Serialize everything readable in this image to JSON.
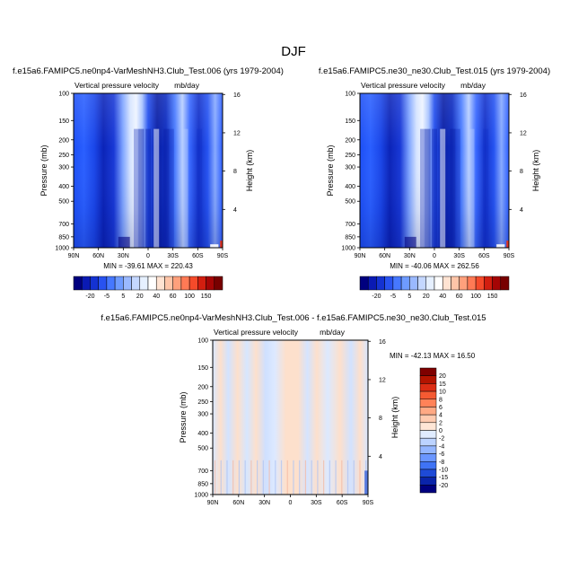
{
  "page": {
    "title": "DJF"
  },
  "colors": {
    "deep_blue": "#00007f",
    "mid_blue": "#1f50ff",
    "light_blue": "#c8dcff",
    "peach": "#fde0cc",
    "red": "#b40000",
    "dark_red": "#7f0000"
  },
  "chart_data": [
    {
      "type": "heatmap",
      "title": "f.e15a6.FAMIPC5.ne0np4-VarMeshNH3.Club_Test.006 (yrs 1979-2004)",
      "subtitle_left": "Vertical pressure velocity",
      "subtitle_right": "mb/day",
      "ylabel": "Pressure (mb)",
      "ylabel_right": "Height (km)",
      "x_ticks": [
        "90N",
        "60N",
        "30N",
        "0",
        "30S",
        "60S",
        "90S"
      ],
      "x_values": [
        90,
        60,
        30,
        0,
        -30,
        -60,
        -90
      ],
      "y_ticks": [
        "100",
        "150",
        "200",
        "250",
        "300",
        "400",
        "500",
        "700",
        "850",
        "1000"
      ],
      "y_values": [
        100,
        150,
        200,
        250,
        300,
        400,
        500,
        700,
        850,
        1000
      ],
      "y_right_ticks": [
        "4",
        "8",
        "12",
        "16"
      ],
      "y_right_values": [
        4,
        8,
        12,
        16
      ],
      "ylim": [
        1000,
        100
      ],
      "y_scale": "log",
      "stats_text": "MIN = -39.61   MAX = 220.43",
      "min": -39.61,
      "max": 220.43,
      "colorbar": {
        "orientation": "horizontal",
        "labels": [
          "-20",
          "-5",
          "5",
          "20",
          "40",
          "60",
          "100",
          "150"
        ],
        "colors": [
          "#00007f",
          "#0a1ab4",
          "#1432d2",
          "#2852f0",
          "#4678ff",
          "#6e9bff",
          "#9ab9ff",
          "#c4d7ff",
          "#e6f0ff",
          "#ffffff",
          "#ffe3d2",
          "#ffc5a8",
          "#ffa07c",
          "#ff7a55",
          "#f54a2a",
          "#d21e0f",
          "#a50505",
          "#780000"
        ]
      }
    },
    {
      "type": "heatmap",
      "title": "f.e15a6.FAMIPC5.ne30_ne30.Club_Test.015 (yrs 1979-2004)",
      "subtitle_left": "Vertical pressure velocity",
      "subtitle_right": "mb/day",
      "ylabel": "Pressure (mb)",
      "ylabel_right": "Height (km)",
      "x_ticks": [
        "90N",
        "60N",
        "30N",
        "0",
        "30S",
        "60S",
        "90S"
      ],
      "x_values": [
        90,
        60,
        30,
        0,
        -30,
        -60,
        -90
      ],
      "y_ticks": [
        "100",
        "150",
        "200",
        "250",
        "300",
        "400",
        "500",
        "700",
        "850",
        "1000"
      ],
      "y_values": [
        100,
        150,
        200,
        250,
        300,
        400,
        500,
        700,
        850,
        1000
      ],
      "y_right_ticks": [
        "4",
        "8",
        "12",
        "16"
      ],
      "y_right_values": [
        4,
        8,
        12,
        16
      ],
      "ylim": [
        1000,
        100
      ],
      "y_scale": "log",
      "stats_text": "MIN = -40.06   MAX = 262.56",
      "min": -40.06,
      "max": 262.56,
      "colorbar": {
        "orientation": "horizontal",
        "labels": [
          "-20",
          "-5",
          "5",
          "20",
          "40",
          "60",
          "100",
          "150"
        ],
        "colors": [
          "#00007f",
          "#0a1ab4",
          "#1432d2",
          "#2852f0",
          "#4678ff",
          "#6e9bff",
          "#9ab9ff",
          "#c4d7ff",
          "#e6f0ff",
          "#ffffff",
          "#ffe3d2",
          "#ffc5a8",
          "#ffa07c",
          "#ff7a55",
          "#f54a2a",
          "#d21e0f",
          "#a50505",
          "#780000"
        ]
      }
    },
    {
      "type": "heatmap",
      "title": "f.e15a6.FAMIPC5.ne0np4-VarMeshNH3.Club_Test.006 - f.e15a6.FAMIPC5.ne30_ne30.Club_Test.015",
      "subtitle_left": "Vertical pressure velocity",
      "subtitle_right": "mb/day",
      "ylabel": "Pressure (mb)",
      "ylabel_right": "Height (km)",
      "x_ticks": [
        "90N",
        "60N",
        "30N",
        "0",
        "30S",
        "60S",
        "90S"
      ],
      "x_values": [
        90,
        60,
        30,
        0,
        -30,
        -60,
        -90
      ],
      "y_ticks": [
        "100",
        "150",
        "200",
        "250",
        "300",
        "400",
        "500",
        "700",
        "850",
        "1000"
      ],
      "y_values": [
        100,
        150,
        200,
        250,
        300,
        400,
        500,
        700,
        850,
        1000
      ],
      "y_right_ticks": [
        "4",
        "8",
        "12",
        "16"
      ],
      "y_right_values": [
        4,
        8,
        12,
        16
      ],
      "ylim": [
        1000,
        100
      ],
      "y_scale": "log",
      "stats_text": "MIN = -42.13   MAX =  16.50",
      "min": -42.13,
      "max": 16.5,
      "colorbar": {
        "orientation": "vertical",
        "labels": [
          "20",
          "15",
          "10",
          "8",
          "6",
          "4",
          "2",
          "0",
          "-2",
          "-4",
          "-6",
          "-8",
          "-10",
          "-15",
          "-20"
        ],
        "colors": [
          "#7f0000",
          "#b41400",
          "#dc2d14",
          "#f55a32",
          "#ff8258",
          "#ffa984",
          "#ffcbb0",
          "#ffe6d6",
          "#e0ecff",
          "#bcd3ff",
          "#94b6ff",
          "#6a96ff",
          "#3f73f5",
          "#1e4ad7",
          "#0a24aa",
          "#00007f"
        ]
      }
    }
  ]
}
